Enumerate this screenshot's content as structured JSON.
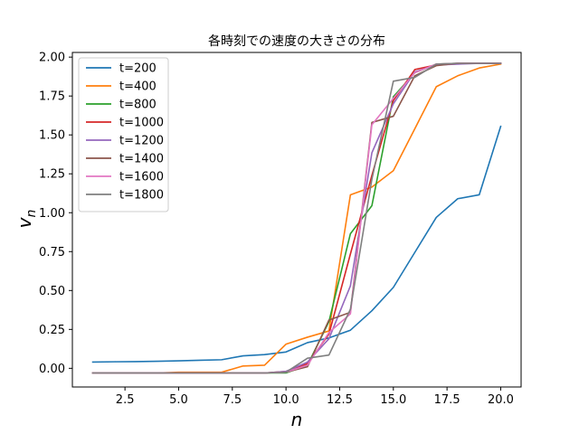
{
  "chart_data": {
    "type": "line",
    "title": "各時刻での速度の大きさの分布",
    "xlabel": "n",
    "ylabel": "v",
    "ylabel_subscript": "n",
    "xlim": [
      0.05,
      20.95
    ],
    "ylim": [
      -0.12,
      2.03
    ],
    "xticks": [
      2.5,
      5.0,
      7.5,
      10.0,
      12.5,
      15.0,
      17.5,
      20.0
    ],
    "xtick_labels": [
      "2.5",
      "5.0",
      "7.5",
      "10.0",
      "12.5",
      "15.0",
      "17.5",
      "20.0"
    ],
    "yticks": [
      0.0,
      0.25,
      0.5,
      0.75,
      1.0,
      1.25,
      1.5,
      1.75,
      2.0
    ],
    "ytick_labels": [
      "0.00",
      "0.25",
      "0.50",
      "0.75",
      "1.00",
      "1.25",
      "1.50",
      "1.75",
      "2.00"
    ],
    "grid": false,
    "legend_position": "top-left",
    "x": [
      1,
      2,
      3,
      4,
      5,
      6,
      7,
      8,
      9,
      10,
      11,
      12,
      13,
      14,
      15,
      16,
      17,
      18,
      19,
      20
    ],
    "series": [
      {
        "name": "t=200",
        "color": "#1f77b4",
        "values": [
          0.04,
          0.042,
          0.043,
          0.045,
          0.048,
          0.052,
          0.055,
          0.08,
          0.088,
          0.105,
          0.165,
          0.195,
          0.245,
          0.37,
          0.52,
          0.745,
          0.97,
          1.09,
          1.115,
          1.555
        ]
      },
      {
        "name": "t=400",
        "color": "#ff7f0e",
        "values": [
          -0.03,
          -0.03,
          -0.03,
          -0.03,
          -0.025,
          -0.025,
          -0.025,
          0.015,
          0.02,
          0.155,
          0.2,
          0.24,
          1.115,
          1.165,
          1.27,
          1.54,
          1.81,
          1.88,
          1.93,
          1.955
        ]
      },
      {
        "name": "t=800",
        "color": "#2ca02c",
        "values": [
          -0.03,
          -0.03,
          -0.03,
          -0.03,
          -0.03,
          -0.03,
          -0.03,
          -0.03,
          -0.03,
          -0.03,
          0.02,
          0.3,
          0.865,
          1.045,
          1.745,
          1.9,
          1.955,
          1.96,
          1.96,
          1.96
        ]
      },
      {
        "name": "t=1000",
        "color": "#d62728",
        "values": [
          -0.03,
          -0.03,
          -0.03,
          -0.03,
          -0.03,
          -0.03,
          -0.03,
          -0.03,
          -0.03,
          -0.02,
          0.03,
          0.22,
          0.735,
          1.24,
          1.72,
          1.92,
          1.95,
          1.96,
          1.96,
          1.96
        ]
      },
      {
        "name": "t=1200",
        "color": "#9467bd",
        "values": [
          -0.03,
          -0.03,
          -0.03,
          -0.03,
          -0.03,
          -0.03,
          -0.03,
          -0.03,
          -0.03,
          -0.02,
          0.04,
          0.19,
          0.53,
          1.385,
          1.7,
          1.905,
          1.95,
          1.955,
          1.96,
          1.96
        ]
      },
      {
        "name": "t=1400",
        "color": "#8c564b",
        "values": [
          -0.03,
          -0.03,
          -0.03,
          -0.03,
          -0.03,
          -0.03,
          -0.03,
          -0.03,
          -0.03,
          -0.025,
          0.01,
          0.31,
          0.36,
          1.58,
          1.62,
          1.88,
          1.945,
          1.96,
          1.96,
          1.96
        ]
      },
      {
        "name": "t=1600",
        "color": "#e377c2",
        "values": [
          -0.03,
          -0.03,
          -0.03,
          -0.03,
          -0.03,
          -0.03,
          -0.03,
          -0.03,
          -0.03,
          -0.025,
          0.02,
          0.23,
          0.35,
          1.565,
          1.735,
          1.9,
          1.955,
          1.96,
          1.96,
          1.96
        ]
      },
      {
        "name": "t=1800",
        "color": "#7f7f7f",
        "values": [
          -0.03,
          -0.03,
          -0.03,
          -0.03,
          -0.03,
          -0.03,
          -0.03,
          -0.03,
          -0.03,
          -0.025,
          0.065,
          0.085,
          0.38,
          1.215,
          1.845,
          1.87,
          1.955,
          1.96,
          1.96,
          1.96
        ]
      }
    ]
  }
}
